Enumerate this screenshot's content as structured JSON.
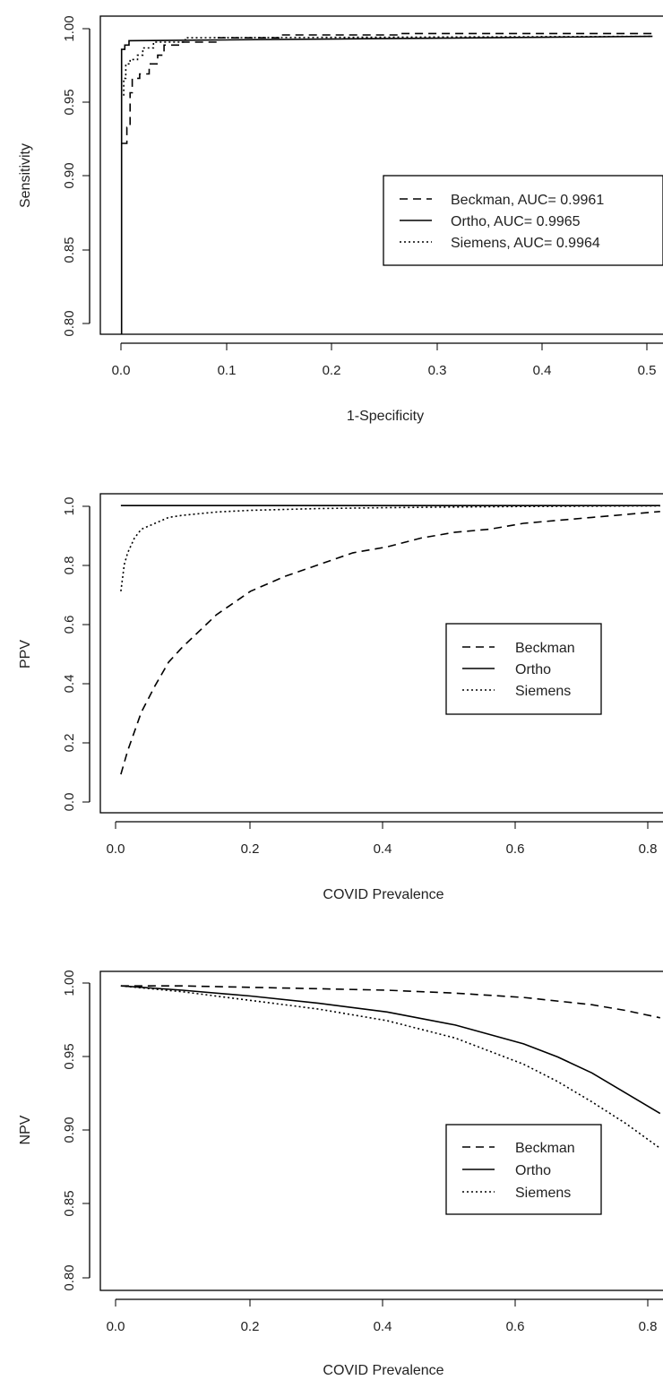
{
  "chart_data": [
    {
      "type": "line",
      "title": "",
      "xlabel": "1-Specificity",
      "ylabel": "Sensitivity",
      "xlim": [
        -0.02,
        0.52
      ],
      "ylim": [
        0.79,
        1.01
      ],
      "xticks": [
        "0.0",
        "0.1",
        "0.2",
        "0.3",
        "0.4",
        "0.5"
      ],
      "yticks": [
        "0.80",
        "0.85",
        "0.90",
        "0.95",
        "1.00"
      ],
      "grid": false,
      "legend_position": "middle-right",
      "series": [
        {
          "name": "Beckman, AUC= 0.9961",
          "style": "dashed",
          "points": [
            [
              0.0,
              0.922
            ],
            [
              0.005,
              0.922
            ],
            [
              0.005,
              0.933
            ],
            [
              0.008,
              0.933
            ],
            [
              0.008,
              0.957
            ],
            [
              0.01,
              0.957
            ],
            [
              0.01,
              0.967
            ],
            [
              0.017,
              0.967
            ],
            [
              0.017,
              0.97
            ],
            [
              0.026,
              0.97
            ],
            [
              0.026,
              0.977
            ],
            [
              0.034,
              0.977
            ],
            [
              0.034,
              0.983
            ],
            [
              0.04,
              0.983
            ],
            [
              0.04,
              0.99
            ],
            [
              0.055,
              0.99
            ],
            [
              0.055,
              0.992
            ],
            [
              0.09,
              0.992
            ],
            [
              0.09,
              0.995
            ],
            [
              0.15,
              0.995
            ],
            [
              0.15,
              0.997
            ],
            [
              0.26,
              0.997
            ],
            [
              0.26,
              0.998
            ],
            [
              0.5,
              0.998
            ]
          ]
        },
        {
          "name": "Ortho, AUC= 0.9965",
          "style": "solid",
          "points": [
            [
              0.0,
              0.79
            ],
            [
              0.0,
              0.987
            ],
            [
              0.003,
              0.987
            ],
            [
              0.003,
              0.99
            ],
            [
              0.007,
              0.99
            ],
            [
              0.007,
              0.993
            ],
            [
              0.5,
              0.996
            ]
          ]
        },
        {
          "name": "Siemens, AUC= 0.9964",
          "style": "dotted",
          "points": [
            [
              0.002,
              0.955
            ],
            [
              0.002,
              0.967
            ],
            [
              0.004,
              0.967
            ],
            [
              0.004,
              0.977
            ],
            [
              0.008,
              0.977
            ],
            [
              0.008,
              0.98
            ],
            [
              0.015,
              0.98
            ],
            [
              0.015,
              0.983
            ],
            [
              0.02,
              0.983
            ],
            [
              0.02,
              0.988
            ],
            [
              0.03,
              0.988
            ],
            [
              0.03,
              0.992
            ],
            [
              0.06,
              0.992
            ],
            [
              0.06,
              0.995
            ],
            [
              0.5,
              0.996
            ]
          ]
        }
      ],
      "legend": [
        {
          "label": "Beckman, AUC= 0.9961",
          "style": "dashed"
        },
        {
          "label": "Ortho, AUC= 0.9965",
          "style": "solid"
        },
        {
          "label": "Siemens, AUC= 0.9964",
          "style": "dotted"
        }
      ]
    },
    {
      "type": "line",
      "title": "",
      "xlabel": "COVID Prevalence",
      "ylabel": "PPV",
      "xlim": [
        -0.02,
        0.82
      ],
      "ylim": [
        -0.04,
        1.04
      ],
      "xticks": [
        "0.0",
        "0.2",
        "0.4",
        "0.6",
        "0.8"
      ],
      "yticks": [
        "0.0",
        "0.2",
        "0.4",
        "0.6",
        "0.8",
        "1.0"
      ],
      "grid": false,
      "legend_position": "middle-right",
      "series": [
        {
          "name": "Beckman",
          "style": "dashed",
          "x": [
            0.01,
            0.02,
            0.04,
            0.06,
            0.08,
            0.1,
            0.15,
            0.2,
            0.25,
            0.3,
            0.35,
            0.4,
            0.45,
            0.5,
            0.55,
            0.6,
            0.65,
            0.7,
            0.75,
            0.8
          ],
          "y": [
            0.09,
            0.17,
            0.3,
            0.39,
            0.47,
            0.52,
            0.63,
            0.71,
            0.76,
            0.8,
            0.84,
            0.86,
            0.89,
            0.91,
            0.92,
            0.94,
            0.95,
            0.96,
            0.97,
            0.98
          ]
        },
        {
          "name": "Ortho",
          "style": "solid",
          "x": [
            0.01,
            0.1,
            0.2,
            0.3,
            0.4,
            0.5,
            0.6,
            0.7,
            0.8
          ],
          "y": [
            1.0,
            1.0,
            1.0,
            1.0,
            1.0,
            1.0,
            1.0,
            1.0,
            1.0
          ]
        },
        {
          "name": "Siemens",
          "style": "dotted",
          "x": [
            0.01,
            0.015,
            0.02,
            0.03,
            0.04,
            0.06,
            0.08,
            0.1,
            0.15,
            0.2,
            0.3,
            0.4,
            0.5,
            0.6,
            0.7,
            0.8
          ],
          "y": [
            0.71,
            0.8,
            0.84,
            0.89,
            0.92,
            0.94,
            0.96,
            0.967,
            0.978,
            0.984,
            0.99,
            0.993,
            0.995,
            0.997,
            0.998,
            0.999
          ]
        }
      ],
      "legend": [
        {
          "label": "Beckman",
          "style": "dashed"
        },
        {
          "label": "Ortho",
          "style": "solid"
        },
        {
          "label": "Siemens",
          "style": "dotted"
        }
      ]
    },
    {
      "type": "line",
      "title": "",
      "xlabel": "COVID Prevalence",
      "ylabel": "NPV",
      "xlim": [
        -0.02,
        0.82
      ],
      "ylim": [
        0.79,
        1.01
      ],
      "xticks": [
        "0.0",
        "0.2",
        "0.4",
        "0.6",
        "0.8"
      ],
      "yticks": [
        "0.80",
        "0.85",
        "0.90",
        "0.95",
        "1.00"
      ],
      "grid": false,
      "legend_position": "middle-right",
      "series": [
        {
          "name": "Beckman",
          "style": "dashed",
          "x": [
            0.01,
            0.1,
            0.2,
            0.3,
            0.4,
            0.5,
            0.6,
            0.7,
            0.75,
            0.8
          ],
          "y": [
            1.0,
            1.0,
            0.999,
            0.998,
            0.997,
            0.995,
            0.992,
            0.987,
            0.983,
            0.978
          ]
        },
        {
          "name": "Ortho",
          "style": "solid",
          "x": [
            0.01,
            0.1,
            0.2,
            0.3,
            0.4,
            0.5,
            0.6,
            0.65,
            0.7,
            0.75,
            0.8
          ],
          "y": [
            1.0,
            0.997,
            0.993,
            0.988,
            0.982,
            0.973,
            0.96,
            0.951,
            0.94,
            0.926,
            0.912
          ]
        },
        {
          "name": "Siemens",
          "style": "dotted",
          "x": [
            0.01,
            0.1,
            0.2,
            0.3,
            0.4,
            0.5,
            0.6,
            0.65,
            0.7,
            0.75,
            0.8
          ],
          "y": [
            1.0,
            0.996,
            0.99,
            0.984,
            0.976,
            0.964,
            0.946,
            0.934,
            0.92,
            0.905,
            0.888
          ]
        }
      ],
      "legend": [
        {
          "label": "Beckman",
          "style": "dashed"
        },
        {
          "label": "Ortho",
          "style": "solid"
        },
        {
          "label": "Siemens",
          "style": "dotted"
        }
      ]
    }
  ]
}
